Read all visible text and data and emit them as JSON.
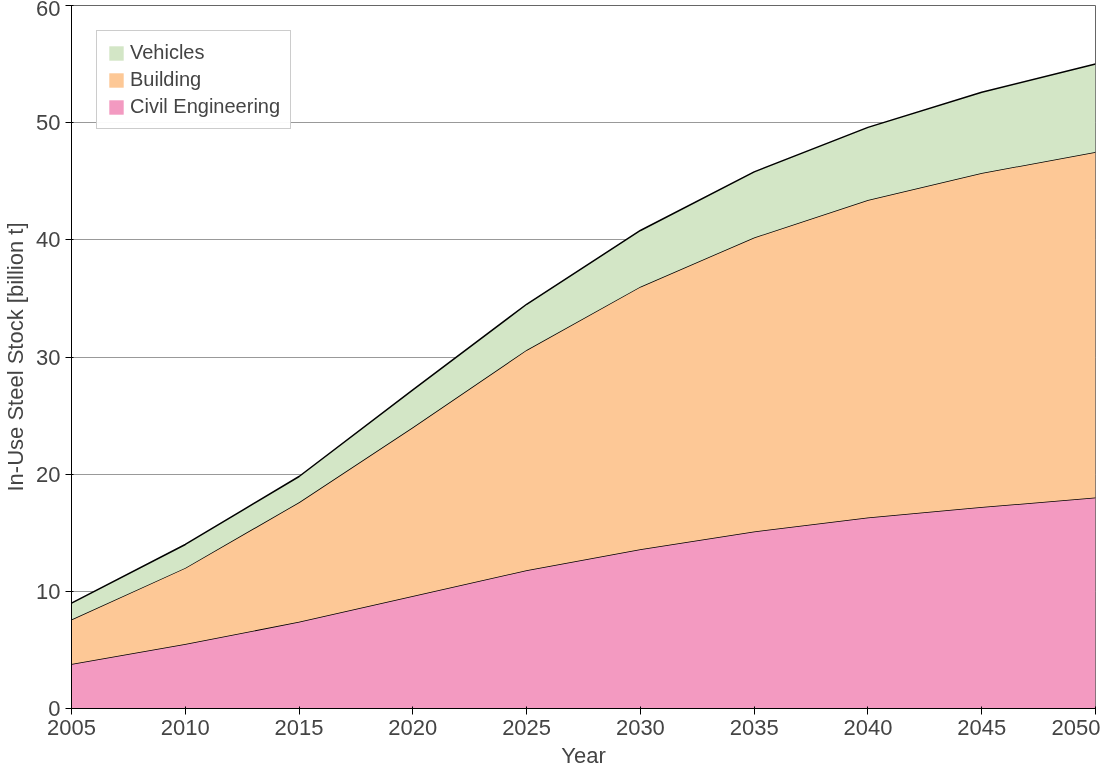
{
  "chart_data": {
    "type": "area",
    "stacked": true,
    "xlabel": "Year",
    "ylabel": "In-Use Steel Stock [billion t]",
    "x": [
      2005,
      2010,
      2015,
      2020,
      2025,
      2030,
      2035,
      2040,
      2045,
      2050
    ],
    "series": [
      {
        "name": "Civil Engineering",
        "color": "#f39ac1",
        "values": [
          3.8,
          5.5,
          7.4,
          9.6,
          11.8,
          13.6,
          15.1,
          16.3,
          17.2,
          18.0
        ]
      },
      {
        "name": "Building",
        "color": "#fdc896",
        "values": [
          3.8,
          6.5,
          10.2,
          14.4,
          18.8,
          22.4,
          25.1,
          27.1,
          28.5,
          29.5
        ]
      },
      {
        "name": "Vehicles",
        "color": "#d3e6c6",
        "values": [
          1.4,
          2.0,
          2.2,
          3.2,
          3.9,
          4.8,
          5.6,
          6.2,
          6.9,
          7.5
        ]
      }
    ],
    "xlim": [
      2005,
      2050
    ],
    "xticks": [
      2005,
      2010,
      2015,
      2020,
      2025,
      2030,
      2035,
      2040,
      2045,
      2050
    ],
    "ylim": [
      0,
      60
    ],
    "yticks": [
      0,
      10,
      20,
      30,
      40,
      50,
      60
    ],
    "grid": "y",
    "legend": "top left"
  }
}
